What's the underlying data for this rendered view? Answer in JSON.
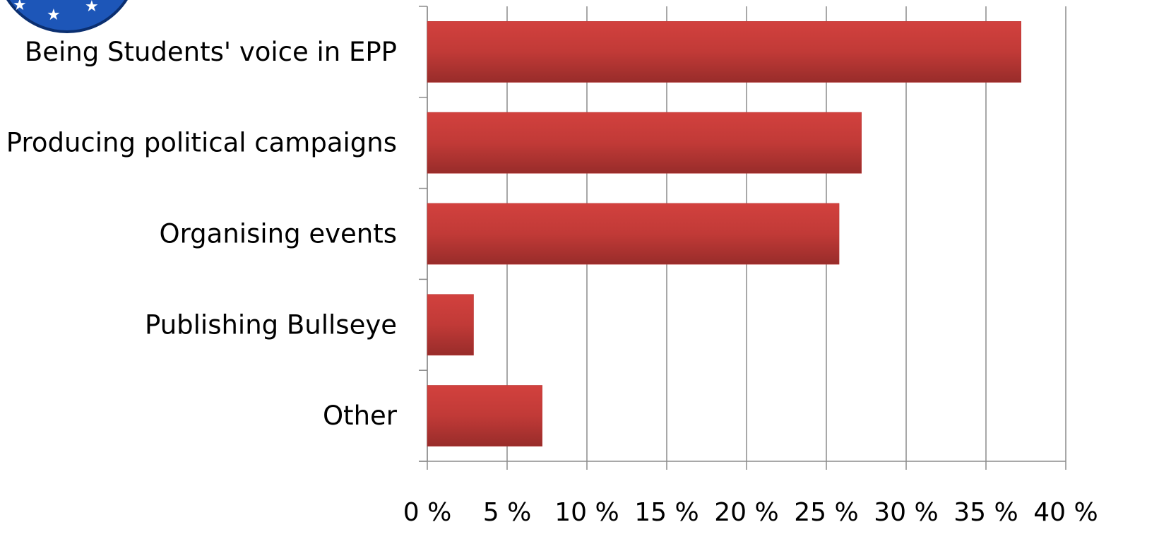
{
  "chart_data": {
    "type": "bar",
    "orientation": "horizontal",
    "categories": [
      "Being Students' voice in EPP",
      "Producing political campaigns",
      "Organising events",
      "Publishing Bullseye",
      "Other"
    ],
    "values": [
      37.2,
      27.2,
      25.8,
      2.9,
      7.2
    ],
    "color": "#b83633",
    "xlim": [
      0,
      40
    ],
    "xticks": [
      {
        "value": 0,
        "label": "0 %"
      },
      {
        "value": 5,
        "label": "5 %"
      },
      {
        "value": 10,
        "label": "10 %"
      },
      {
        "value": 15,
        "label": "15 %"
      },
      {
        "value": 20,
        "label": "20 %"
      },
      {
        "value": 25,
        "label": "25 %"
      },
      {
        "value": 30,
        "label": "30 %"
      },
      {
        "value": 35,
        "label": "35 %"
      },
      {
        "value": 40,
        "label": "40 %"
      }
    ],
    "grid": true
  }
}
